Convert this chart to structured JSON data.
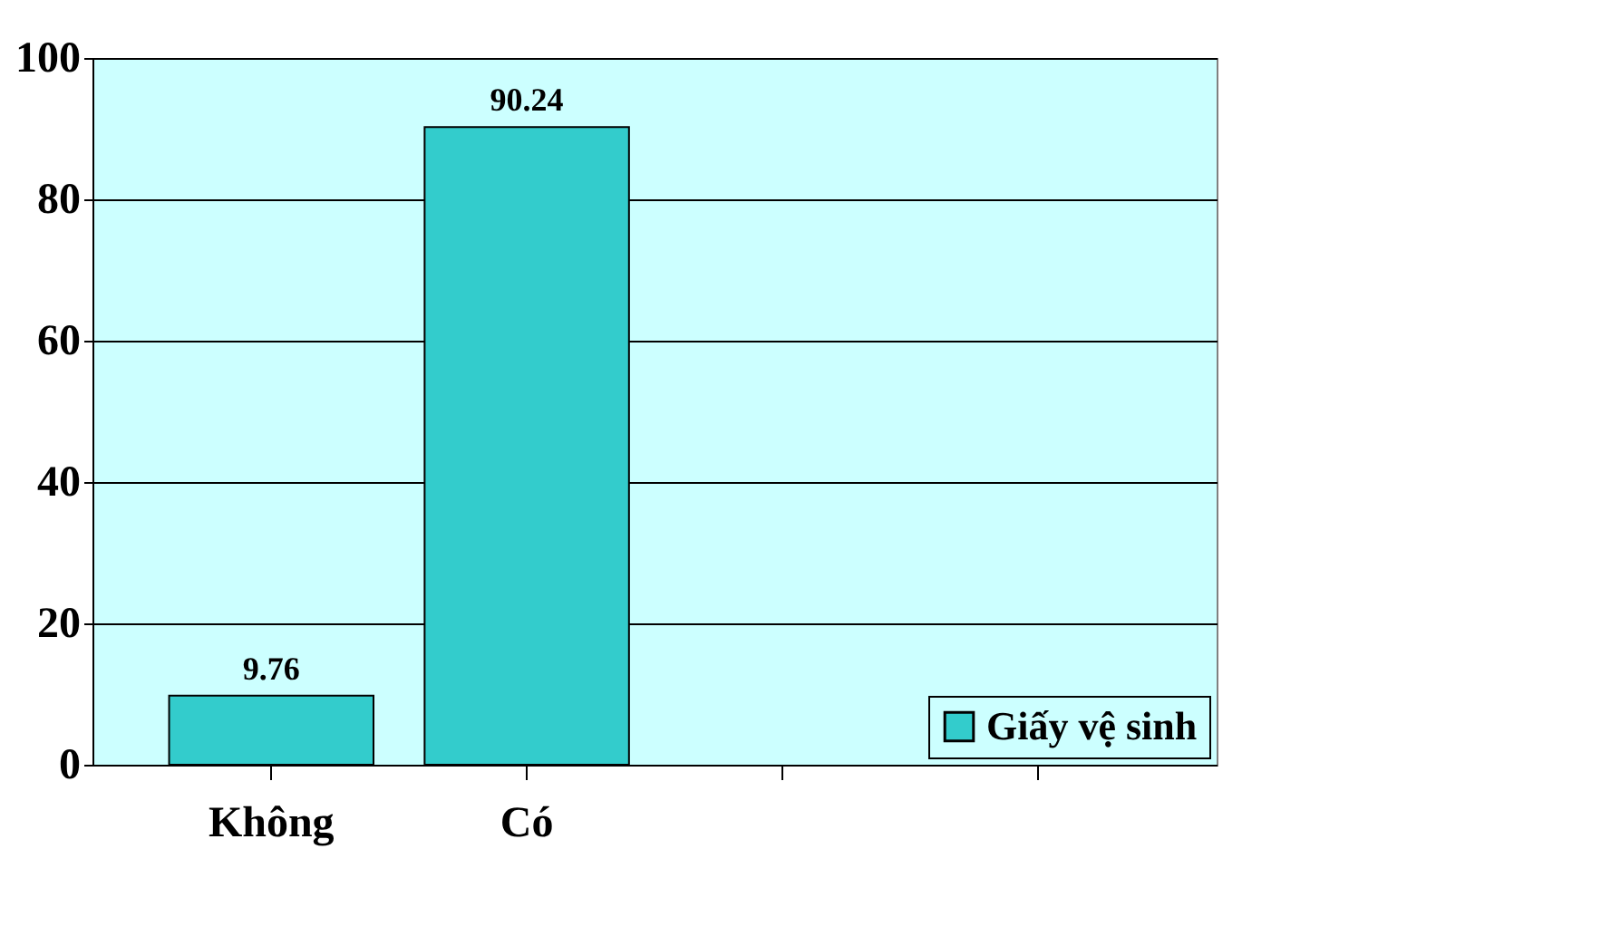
{
  "chart_data": {
    "type": "bar",
    "categories": [
      "Không",
      "Có",
      null,
      null
    ],
    "series": [
      {
        "name": "Giấy vệ sinh",
        "color": "#33cccc",
        "values": [
          9.76,
          90.24,
          null,
          null
        ]
      }
    ],
    "ylim": [
      0,
      100
    ],
    "yticks": [
      0,
      20,
      40,
      60,
      80,
      100
    ],
    "grid": "y",
    "legend": "bottom right",
    "data_labels": true
  }
}
